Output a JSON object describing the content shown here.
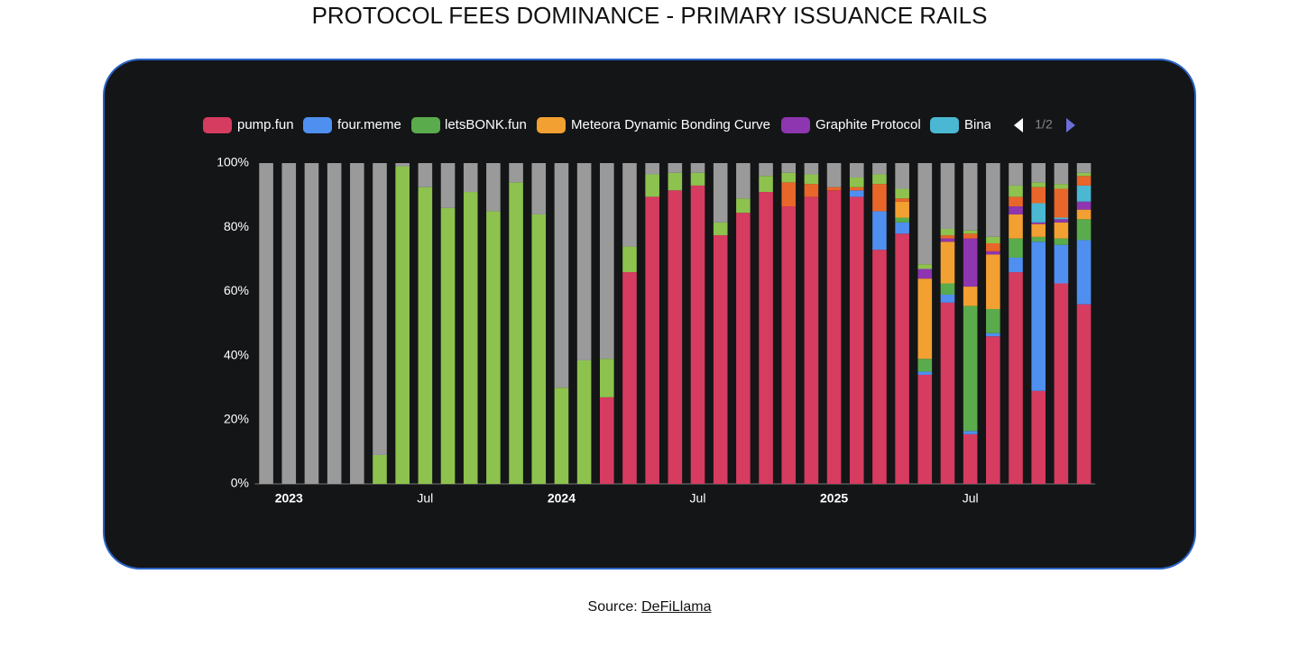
{
  "title": "PROTOCOL FEES DOMINANCE - PRIMARY ISSUANCE RAILS",
  "source": {
    "label": "Source:",
    "link": "DeFiLlama"
  },
  "chart_data": {
    "type": "stacked_bar",
    "legend_page": "1/2",
    "categories": [
      null,
      "2023",
      null,
      null,
      null,
      null,
      null,
      "Jul",
      null,
      null,
      null,
      null,
      null,
      "2024",
      null,
      null,
      null,
      null,
      null,
      "Jul",
      null,
      null,
      null,
      null,
      null,
      "2025",
      null,
      null,
      null,
      null,
      null,
      "Jul",
      null,
      null,
      null,
      null,
      null
    ],
    "ylim": [
      0,
      100
    ],
    "yticks": [
      {
        "value": 0,
        "label": "0%"
      },
      {
        "value": 20,
        "label": "20%"
      },
      {
        "value": 40,
        "label": "40%"
      },
      {
        "value": 60,
        "label": "60%"
      },
      {
        "value": 80,
        "label": "80%"
      },
      {
        "value": 100,
        "label": "100%"
      }
    ],
    "grid": false,
    "series": [
      {
        "name": "pump.fun",
        "color": "#d63b60",
        "values": [
          0,
          0,
          0,
          0,
          0,
          0,
          0,
          0,
          0,
          0,
          0,
          0,
          0,
          0,
          0,
          27,
          66,
          89.5,
          91.5,
          93,
          77.5,
          84.5,
          91,
          86.5,
          89.5,
          91.5,
          89.5,
          73,
          78,
          34,
          56.5,
          15.5,
          46,
          66,
          29,
          62.5,
          56
        ]
      },
      {
        "name": "four.meme",
        "color": "#4f8fef",
        "values": [
          0,
          0,
          0,
          0,
          0,
          0,
          0,
          0,
          0,
          0,
          0,
          0,
          0,
          0,
          0,
          0,
          0,
          0,
          0,
          0,
          0,
          0,
          0,
          0,
          0,
          0,
          2,
          12,
          3.5,
          1,
          2.5,
          1,
          1,
          4.5,
          46.5,
          12,
          20
        ]
      },
      {
        "name": "letsBONK.fun",
        "color": "#5aab4c",
        "values": [
          0,
          0,
          0,
          0,
          0,
          0,
          0,
          0,
          0,
          0,
          0,
          0,
          0,
          0,
          0,
          0,
          0,
          0,
          0,
          0,
          0,
          0,
          0,
          0,
          0,
          0,
          0,
          0,
          1.5,
          4,
          3.5,
          39,
          7.5,
          6,
          1.5,
          2,
          6.5
        ]
      },
      {
        "name": "Meteora Dynamic Bonding Curve",
        "color": "#f2a031",
        "values": [
          0,
          0,
          0,
          0,
          0,
          0,
          0,
          0,
          0,
          0,
          0,
          0,
          0,
          0,
          0,
          0,
          0,
          0,
          0,
          0,
          0,
          0,
          0,
          0,
          0,
          0,
          0,
          0,
          5,
          25,
          13,
          6,
          17,
          7.5,
          4,
          5,
          3
        ]
      },
      {
        "name": "Graphite Protocol",
        "color": "#8e35b0",
        "values": [
          0,
          0,
          0,
          0,
          0,
          0,
          0,
          0,
          0,
          0,
          0,
          0,
          0,
          0,
          0,
          0,
          0,
          0,
          0,
          0,
          0,
          0,
          0,
          0,
          0,
          0,
          0,
          0,
          0,
          3,
          1,
          15,
          1,
          2.5,
          0.5,
          1,
          2.5
        ]
      },
      {
        "name": "Bina",
        "color": "#4ab8d2",
        "values": [
          0,
          0,
          0,
          0,
          0,
          0,
          0,
          0,
          0,
          0,
          0,
          0,
          0,
          0,
          0,
          0,
          0,
          0,
          0,
          0,
          0,
          0,
          0,
          0,
          0,
          0,
          0,
          0,
          0,
          0,
          0,
          0,
          0,
          0,
          6,
          0.5,
          5
        ]
      },
      {
        "color": "#e8662a",
        "values": [
          0,
          0,
          0,
          0,
          0,
          0,
          0,
          0,
          0,
          0,
          0,
          0,
          0,
          0,
          0,
          0,
          0,
          0,
          0,
          0,
          0,
          0,
          0,
          7.5,
          4,
          1,
          1,
          8.5,
          1,
          0,
          1,
          1.5,
          2.5,
          3,
          5,
          9,
          3
        ]
      },
      {
        "color": "#8dc24e",
        "values": [
          0,
          0,
          0,
          0,
          0,
          9,
          99,
          92.5,
          86,
          91,
          85,
          94,
          84,
          30,
          38.5,
          12,
          8,
          7,
          5.5,
          4,
          4,
          4.5,
          5,
          3,
          3,
          0,
          3,
          3,
          3,
          1.5,
          2,
          1,
          2,
          3.5,
          1.5,
          1.5,
          1
        ]
      },
      {
        "color": "#9a9a9a",
        "values": [
          100,
          100,
          100,
          100,
          100,
          91,
          1,
          7.5,
          14,
          9,
          15,
          6,
          16,
          70,
          61.5,
          61,
          26,
          3.5,
          3,
          3,
          18.5,
          11,
          4,
          3,
          3.5,
          7.5,
          4.5,
          3.5,
          8,
          31.5,
          20.5,
          21,
          23,
          7,
          6,
          6.5,
          3
        ]
      }
    ]
  }
}
